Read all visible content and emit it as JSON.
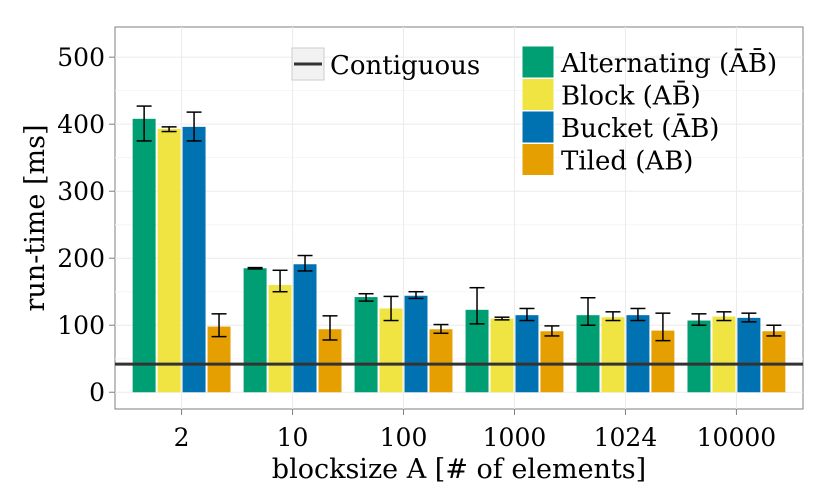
{
  "chart_data": {
    "type": "bar",
    "title": "",
    "xlabel": "blocksize A [# of elements]",
    "ylabel": "run-time [ms]",
    "ylim": [
      -25,
      545
    ],
    "yticks": [
      0,
      100,
      200,
      300,
      400,
      500
    ],
    "categories": [
      "2",
      "10",
      "100",
      "1000",
      "1024",
      "10000"
    ],
    "series": [
      {
        "name": "Alternating (ĀB̄)",
        "color": "#009E73",
        "values": [
          408,
          185,
          142,
          123,
          115,
          107
        ],
        "err_low": [
          375,
          184,
          136,
          102,
          100,
          100
        ],
        "err_high": [
          427,
          186,
          147,
          156,
          141,
          117
        ]
      },
      {
        "name": "Block (AB̄)",
        "color": "#F0E442",
        "values": [
          393,
          160,
          125,
          110,
          112,
          113
        ],
        "err_low": [
          389,
          150,
          107,
          108,
          107,
          107
        ],
        "err_high": [
          396,
          182,
          143,
          112,
          120,
          120
        ]
      },
      {
        "name": "Bucket (ĀB)",
        "color": "#0072B2",
        "values": [
          396,
          191,
          144,
          115,
          115,
          111
        ],
        "err_low": [
          375,
          181,
          140,
          107,
          107,
          105
        ],
        "err_high": [
          418,
          204,
          150,
          125,
          125,
          118
        ]
      },
      {
        "name": "Tiled (AB)",
        "color": "#E69F00",
        "values": [
          98,
          94,
          94,
          91,
          92,
          91
        ],
        "err_low": [
          83,
          78,
          88,
          84,
          77,
          84
        ],
        "err_high": [
          117,
          114,
          101,
          99,
          118,
          100
        ]
      }
    ],
    "reference_line": {
      "name": "Contiguous",
      "value": 42,
      "color": "#333333"
    },
    "legend": {
      "position": "top-right"
    },
    "grid": true
  }
}
